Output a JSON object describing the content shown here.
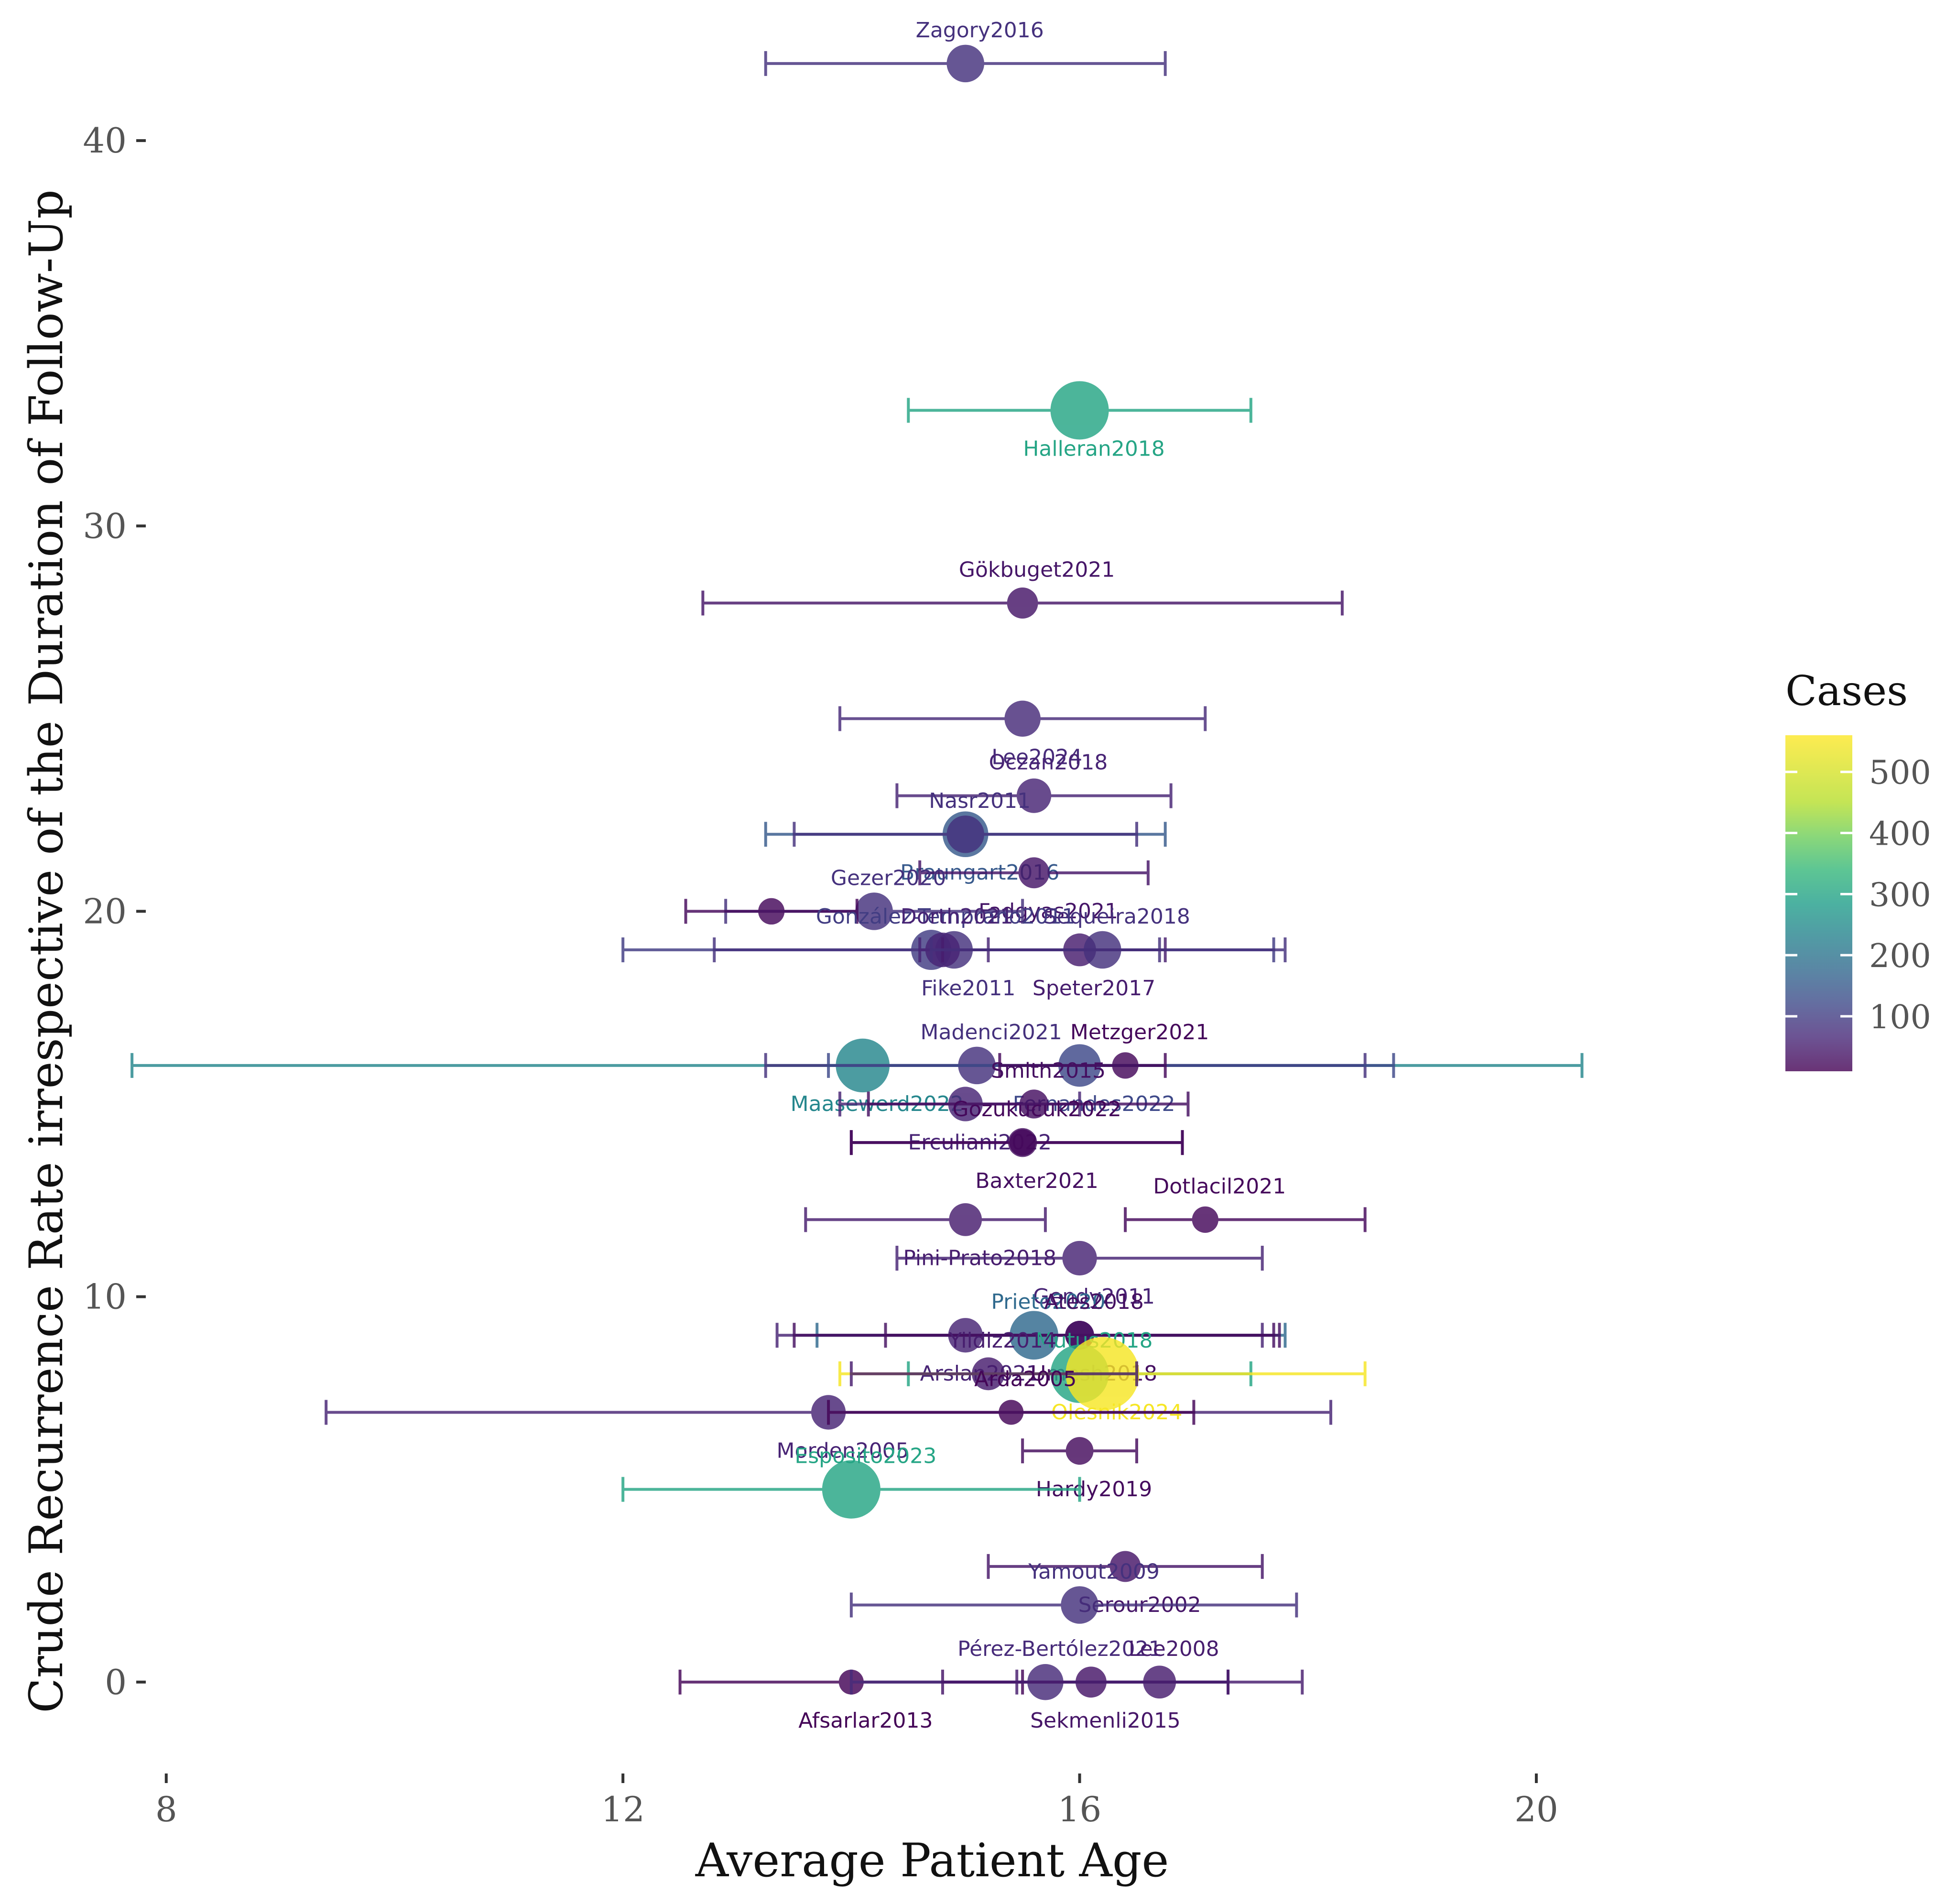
{
  "chart_data": {
    "type": "scatter",
    "title": "",
    "xlabel": "Average Patient Age",
    "ylabel": "Crude Recurrence Rate irrespective of the Duration of Follow-Up",
    "xlim": [
      7.8,
      21.7
    ],
    "ylim": [
      -2.0,
      43.4
    ],
    "xticks": [
      8,
      12,
      16,
      20
    ],
    "yticks": [
      0,
      10,
      20,
      30,
      40
    ],
    "grid": false,
    "legend": {
      "title": "Cases",
      "position": "right",
      "ticks": [
        100,
        200,
        300,
        400,
        500
      ],
      "range": [
        10,
        560
      ]
    },
    "points": [
      {
        "label": "Zagory2016",
        "x": 15.0,
        "y": 42.0,
        "xmin": 13.25,
        "xmax": 16.75,
        "cases": 80
      },
      {
        "label": "Halleran2018",
        "x": 16.0,
        "y": 33.0,
        "xmin": 14.5,
        "xmax": 17.5,
        "cases": 300
      },
      {
        "label": "Gökbuget2021",
        "x": 15.5,
        "y": 28.0,
        "xmin": 12.7,
        "xmax": 18.3,
        "cases": 40
      },
      {
        "label": "Lee2024",
        "x": 15.5,
        "y": 25.0,
        "xmin": 13.9,
        "xmax": 17.1,
        "cases": 70
      },
      {
        "label": "Oczan2018",
        "x": 15.6,
        "y": 23.0,
        "xmin": 14.4,
        "xmax": 16.8,
        "cases": 60
      },
      {
        "label": "Braungart2016",
        "x": 15.0,
        "y": 22.0,
        "xmin": 13.25,
        "xmax": 16.75,
        "cases": 150
      },
      {
        "label": "Nasr2011",
        "x": 15.0,
        "y": 22.0,
        "xmin": 13.5,
        "xmax": 16.5,
        "cases": 80
      },
      {
        "label": "Fadgyas2021",
        "x": 15.6,
        "y": 21.0,
        "xmin": 14.6,
        "xmax": 16.6,
        "cases": 40
      },
      {
        "label": "Gezer2020",
        "x": 14.2,
        "y": 20.0,
        "xmin": 12.9,
        "xmax": 15.5,
        "cases": 80
      },
      {
        "label": "Gezer2020 (2)",
        "x": 13.3,
        "y": 20.0,
        "xmin": 12.55,
        "xmax": 14.05,
        "cases": 20,
        "hide_label": true
      },
      {
        "label": "González-Temprano2011",
        "x": 14.7,
        "y": 19.0,
        "xmin": 12.0,
        "xmax": 17.7,
        "cases": 100
      },
      {
        "label": "Fike2011",
        "x": 14.9,
        "y": 19.0,
        "xmin": 12.8,
        "xmax": 16.7,
        "cases": 80
      },
      {
        "label": "Dorth2021",
        "x": 14.8,
        "y": 19.0,
        "xmin": 14.6,
        "xmax": 15.2,
        "cases": 60,
        "hide_label_offset": true
      },
      {
        "label": "Speter2017",
        "x": 16.0,
        "y": 19.0,
        "xmin": 14.8,
        "xmax": 16.75,
        "cases": 50
      },
      {
        "label": "Sequeira2018",
        "x": 16.2,
        "y": 19.0,
        "xmin": 14.7,
        "xmax": 17.8,
        "cases": 80
      },
      {
        "label": "Maasewerd2022",
        "x": 14.1,
        "y": 16.0,
        "xmin": 7.7,
        "xmax": 20.4,
        "cases": 240
      },
      {
        "label": "Madenci2021",
        "x": 15.1,
        "y": 16.0,
        "xmin": 13.25,
        "xmax": 18.5,
        "cases": 80
      },
      {
        "label": "Fernandes2022",
        "x": 16.0,
        "y": 16.0,
        "xmin": 13.8,
        "xmax": 18.75,
        "cases": 120
      },
      {
        "label": "Metzger2021",
        "x": 16.4,
        "y": 16.0,
        "xmin": 15.3,
        "xmax": 16.75,
        "cases": 20
      },
      {
        "label": "Erculiani2022",
        "x": 15.0,
        "y": 15.0,
        "xmin": 13.9,
        "xmax": 16.0,
        "cases": 60
      },
      {
        "label": "Smith2015",
        "x": 15.6,
        "y": 15.0,
        "xmin": 14.15,
        "xmax": 16.95,
        "cases": 30
      },
      {
        "label": "Baxter2021",
        "x": 15.5,
        "y": 14.0,
        "xmin": 14.0,
        "xmax": 16.9,
        "cases": 30
      },
      {
        "label": "Gozukucuk2022",
        "x": 15.5,
        "y": 14.0,
        "xmin": 14.0,
        "xmax": 16.9,
        "cases": 20,
        "hide_label": false
      },
      {
        "label": "Pini-Prato2018",
        "x": 15.0,
        "y": 12.0,
        "xmin": 13.6,
        "xmax": 15.7,
        "cases": 50
      },
      {
        "label": "Dotlacil2021",
        "x": 17.1,
        "y": 12.0,
        "xmin": 16.4,
        "xmax": 18.5,
        "cases": 20
      },
      {
        "label": "Gendy2011",
        "x": 16.0,
        "y": 11.0,
        "xmin": 14.4,
        "xmax": 17.6,
        "cases": 60
      },
      {
        "label": "Prieto2020",
        "x": 15.6,
        "y": 9.0,
        "xmin": 13.7,
        "xmax": 17.8,
        "cases": 180
      },
      {
        "label": "Arslan2021",
        "x": 15.0,
        "y": 9.0,
        "xmin": 13.35,
        "xmax": 17.6,
        "cases": 60
      },
      {
        "label": "Ates2018",
        "x": 16.0,
        "y": 9.0,
        "xmin": 14.3,
        "xmax": 17.7,
        "cases": 30
      },
      {
        "label": "Umesh2018",
        "x": 16.0,
        "y": 9.0,
        "xmin": 13.5,
        "xmax": 17.75,
        "cases": 30,
        "hide_label": false
      },
      {
        "label": "Mutus2018",
        "x": 16.0,
        "y": 8.0,
        "xmin": 14.5,
        "xmax": 17.5,
        "cases": 300
      },
      {
        "label": "Olesnik2024",
        "x": 16.2,
        "y": 8.0,
        "xmin": 13.9,
        "xmax": 18.5,
        "cases": 550
      },
      {
        "label": "Yildiz2014",
        "x": 15.2,
        "y": 8.0,
        "xmin": 14.0,
        "xmax": 16.5,
        "cases": 50
      },
      {
        "label": "Morden2005",
        "x": 13.8,
        "y": 7.0,
        "xmin": 9.4,
        "xmax": 18.2,
        "cases": 60
      },
      {
        "label": "Arda2005",
        "x": 15.4,
        "y": 7.0,
        "xmin": 13.8,
        "xmax": 17.0,
        "cases": 15
      },
      {
        "label": "Hardy2019",
        "x": 16.0,
        "y": 6.0,
        "xmin": 15.5,
        "xmax": 16.5,
        "cases": 25
      },
      {
        "label": "Esposito2023",
        "x": 14.0,
        "y": 5.0,
        "xmin": 12.0,
        "xmax": 16.0,
        "cases": 300
      },
      {
        "label": "Serour2002",
        "x": 16.4,
        "y": 3.0,
        "xmin": 15.2,
        "xmax": 17.6,
        "cases": 40
      },
      {
        "label": "Yamout2009",
        "x": 16.0,
        "y": 2.0,
        "xmin": 14.0,
        "xmax": 17.9,
        "cases": 80
      },
      {
        "label": "Afsarlar2013",
        "x": 14.0,
        "y": 0.0,
        "xmin": 12.5,
        "xmax": 15.5,
        "cases": 15
      },
      {
        "label": "Pérez-Bertólez2021",
        "x": 15.7,
        "y": 0.0,
        "xmin": 14.0,
        "xmax": 17.3,
        "cases": 70
      },
      {
        "label": "Sekmenli2015",
        "x": 16.1,
        "y": 0.0,
        "xmin": 14.8,
        "xmax": 17.3,
        "cases": 40
      },
      {
        "label": "Lee2008",
        "x": 16.7,
        "y": 0.0,
        "xmin": 15.45,
        "xmax": 17.95,
        "cases": 50
      }
    ]
  }
}
